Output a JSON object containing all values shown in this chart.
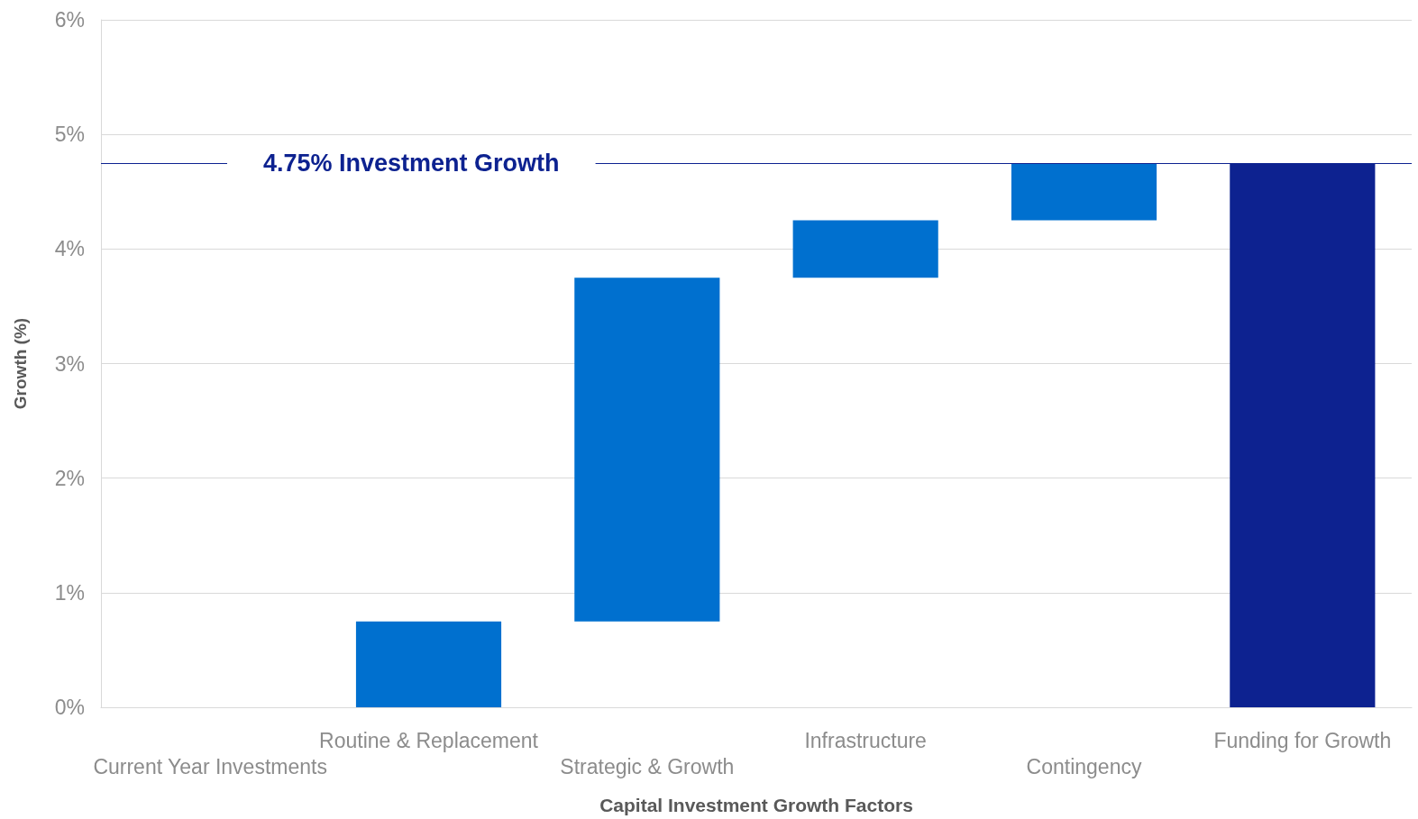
{
  "chart_data": {
    "type": "bar",
    "xlabel": "Capital Investment Growth Factors",
    "ylabel": "Growth (%)",
    "categories": [
      "Current Year Investments",
      "Routine & Replacement",
      "Strategic & Growth",
      "Infrastructure",
      "Contingency",
      "Funding for Growth"
    ],
    "values": [
      null,
      0.75,
      3,
      0.5,
      0.5,
      4.75
    ],
    "base": [
      null,
      0,
      0.75,
      3.75,
      4.25,
      0
    ],
    "colors": [
      null,
      "#0070cf",
      "#0070cf",
      "#0070cf",
      "#0070cf",
      "#0d2290"
    ],
    "ylim": [
      0,
      6
    ],
    "yticks": [
      {
        "value": 0,
        "label": "0%"
      },
      {
        "value": 1,
        "label": "1%"
      },
      {
        "value": 2,
        "label": "2%"
      },
      {
        "value": 3,
        "label": "3%"
      },
      {
        "value": 4,
        "label": "4%"
      },
      {
        "value": 5,
        "label": "5%"
      },
      {
        "value": 6,
        "label": "6%"
      }
    ],
    "ref_lines": [
      {
        "axis": "y",
        "value": 4.75,
        "label": "4.75% Investment Growth",
        "color": "#0d2290"
      }
    ],
    "grid": "y"
  }
}
